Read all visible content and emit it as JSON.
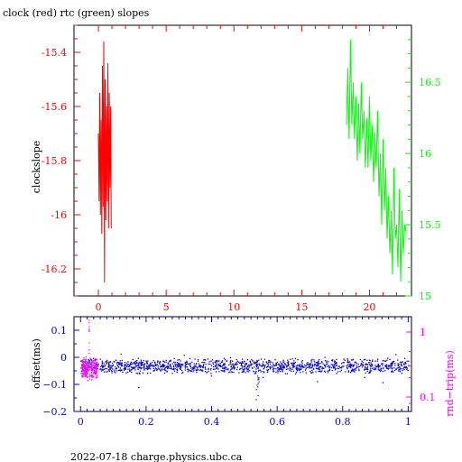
{
  "title": "clock (red) rtc (green) slopes",
  "footer": "2022-07-18 charge.physics.ubc.ca",
  "colors": {
    "red": "#ff0000",
    "green": "#00ff00",
    "blue": "#0000ff",
    "magenta": "#ff00ff",
    "black": "#000000"
  },
  "chart_data": [
    {
      "type": "line",
      "title": "clock (red) rtc (green) slopes",
      "ylabel": "clockslope",
      "x_range": [
        -1.8,
        23.1
      ],
      "xticks": [
        0,
        5,
        10,
        15,
        20
      ],
      "y_range": [
        -16.3,
        -15.3
      ],
      "yticks": [
        -15.4,
        -15.6,
        -15.8,
        -16,
        -16.2
      ],
      "y2_range": [
        15,
        16.9
      ],
      "y2ticks": [
        16.5,
        16,
        15.5,
        15
      ],
      "series": [
        {
          "name": "clock",
          "color": "#ff0000",
          "axis": "left",
          "x": [
            0.0,
            0.05,
            0.1,
            0.15,
            0.2,
            0.25,
            0.3,
            0.35,
            0.4,
            0.45,
            0.5,
            0.55,
            0.6,
            0.65,
            0.7,
            0.75,
            0.8,
            0.85,
            0.9,
            0.95
          ],
          "y": [
            -15.7,
            -15.95,
            -15.55,
            -16.0,
            -15.65,
            -16.07,
            -15.45,
            -15.97,
            -15.36,
            -16.25,
            -15.5,
            -16.02,
            -15.6,
            -15.95,
            -15.44,
            -16.05,
            -15.55,
            -15.9,
            -15.6,
            -16.05
          ]
        },
        {
          "name": "rtc",
          "color": "#00ff00",
          "axis": "right",
          "x": [
            18.3,
            18.4,
            18.5,
            18.6,
            18.7,
            18.8,
            18.9,
            19.0,
            19.1,
            19.2,
            19.3,
            19.4,
            19.5,
            19.6,
            19.7,
            19.8,
            19.9,
            20.0,
            20.1,
            20.2,
            20.3,
            20.4,
            20.5,
            20.6,
            20.7,
            20.8,
            20.9,
            21.0,
            21.1,
            21.2,
            21.3,
            21.4,
            21.5,
            21.6,
            21.7,
            21.8,
            21.9,
            22.0,
            22.1,
            22.2,
            22.3,
            22.4,
            22.5,
            22.6,
            22.7
          ],
          "y": [
            16.2,
            16.6,
            16.1,
            16.8,
            16.2,
            16.5,
            16.1,
            16.4,
            15.95,
            16.35,
            16.0,
            16.5,
            16.1,
            16.3,
            15.9,
            16.25,
            15.9,
            16.4,
            15.95,
            16.2,
            15.8,
            16.15,
            15.9,
            16.3,
            15.7,
            16.0,
            15.5,
            16.1,
            15.6,
            15.9,
            15.4,
            15.7,
            15.3,
            15.6,
            15.15,
            15.9,
            15.4,
            15.5,
            15.2,
            15.75,
            15.1,
            15.6,
            15.3,
            15.5,
            15.45
          ]
        }
      ]
    },
    {
      "type": "scatter",
      "ylabel": "offset(ms)",
      "y2label": "rnd−trip(ms)",
      "x_range": [
        -0.02,
        1.01
      ],
      "xticks": [
        "0",
        "0.2",
        "0.4",
        "0.6",
        "0.8",
        "1"
      ],
      "y_range": [
        -0.2,
        0.15
      ],
      "yticks": [
        "0.1",
        "0",
        "−0.1",
        "−0.2"
      ],
      "y2_scale": "log",
      "y2ticks": [
        "1",
        "0.1"
      ],
      "series": [
        {
          "name": "offset",
          "color": "#0000ff",
          "axis": "left",
          "x_range": [
            0,
            1
          ],
          "y_center": -0.03,
          "y_spread": 0.03
        },
        {
          "name": "rnd-trip",
          "color": "#ff00ff",
          "axis": "right",
          "x_range": [
            0,
            0.05
          ],
          "y_center": 0.11,
          "y_spread": 0.02
        }
      ]
    }
  ]
}
